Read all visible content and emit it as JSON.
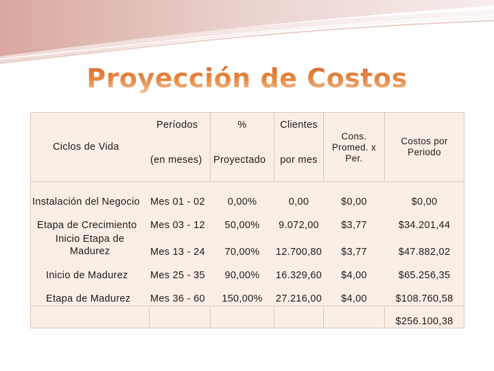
{
  "title": "Proyección de Costos",
  "colors": {
    "title": "#e07a3a",
    "table_bg": "#fbeee5",
    "border": "#dcc7b8"
  },
  "header": {
    "ciclos": "Ciclos de Vida",
    "periodos": "Períodos",
    "periodos_unit": "(en meses)",
    "pct": "%",
    "pct_sub": "Proyectado",
    "clientes": "Clientes",
    "clientes_sub": "por mes",
    "cons_l1": "Cons.",
    "cons_l2": "Promed. x",
    "cons_l3": "Per.",
    "costos_l1": "Costos por",
    "costos_l2": "Periodo"
  },
  "rows": [
    {
      "ciclo": "Instalación del Negocio",
      "periodo": "Mes 01 - 02",
      "pct": "0,00%",
      "clientes": "0,00",
      "cons": "$0,00",
      "costos": "$0,00"
    },
    {
      "ciclo": "Etapa de Crecimiento",
      "periodo": "Mes 03 - 12",
      "pct": "50,00%",
      "clientes": "9.072,00",
      "cons": "$3,77",
      "costos": "$34.201,44"
    },
    {
      "ciclo_l1": "Inicio Etapa de",
      "ciclo_l2": "Madurez",
      "periodo": "Mes 13 - 24",
      "pct": "70,00%",
      "clientes": "12.700,80",
      "cons": "$3,77",
      "costos": "$47.882,02"
    },
    {
      "ciclo": "Inicio de Madurez",
      "periodo": "Mes 25 - 35",
      "pct": "90,00%",
      "clientes": "16.329,60",
      "cons": "$4,00",
      "costos": "$65.256,35"
    },
    {
      "ciclo": "Etapa de Madurez",
      "periodo": "Mes 36 - 60",
      "pct": "150,00%",
      "clientes": "27.216,00",
      "cons": "$4,00",
      "costos": "$108.760,58"
    }
  ],
  "total": "$256.100,38"
}
